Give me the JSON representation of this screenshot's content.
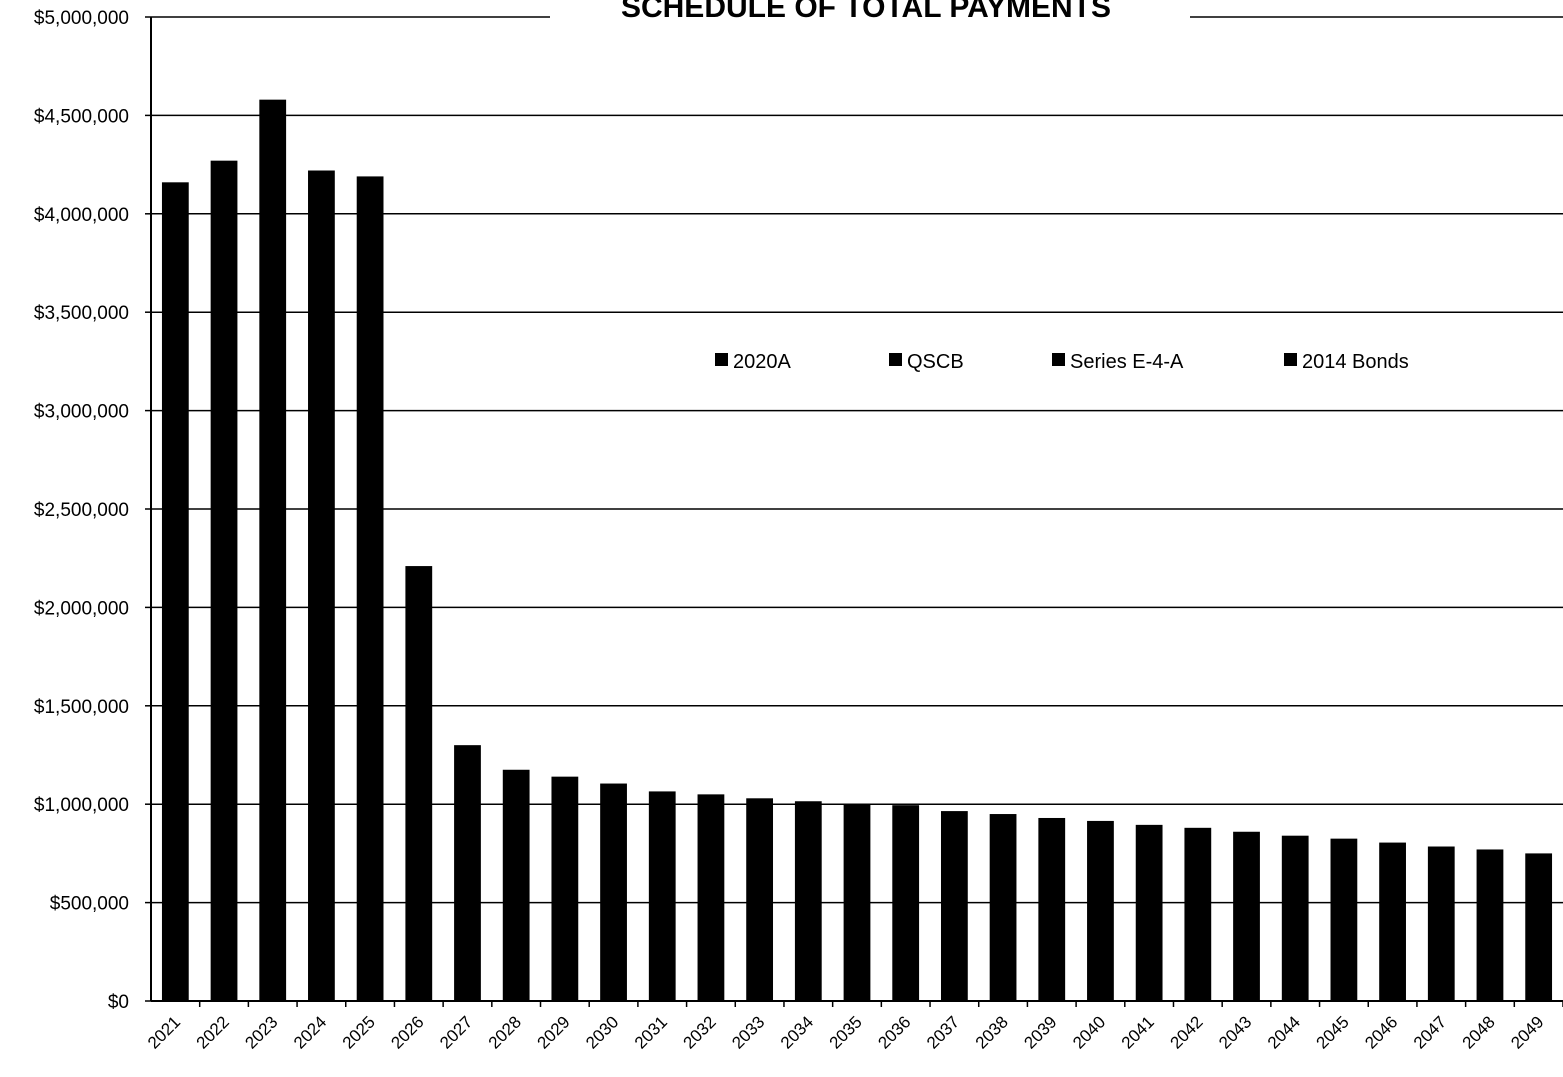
{
  "chart_data": {
    "type": "bar",
    "title": "SCHEDULE OF TOTAL PAYMENTS",
    "xlabel": "",
    "ylabel": "",
    "ylim": [
      0,
      5000000
    ],
    "yticks": [
      "$0",
      "$500,000",
      "$1,000,000",
      "$1,500,000",
      "$2,000,000",
      "$2,500,000",
      "$3,000,000",
      "$3,500,000",
      "$4,000,000",
      "$4,500,000",
      "$5,000,000"
    ],
    "grid": true,
    "legend_position": "center-right",
    "legend": [
      "2020A",
      "QSCB",
      "Series E-4-A",
      "2014 Bonds"
    ],
    "bar_color": "#000000",
    "categories": [
      "2021",
      "2022",
      "2023",
      "2024",
      "2025",
      "2026",
      "2027",
      "2028",
      "2029",
      "2030",
      "2031",
      "2032",
      "2033",
      "2034",
      "2035",
      "2036",
      "2037",
      "2038",
      "2039",
      "2040",
      "2041",
      "2042",
      "2043",
      "2044",
      "2045",
      "2046",
      "2047",
      "2048",
      "2049"
    ],
    "values": [
      4160000,
      4270000,
      4580000,
      4220000,
      4190000,
      2210000,
      1300000,
      1175000,
      1140000,
      1105000,
      1065000,
      1050000,
      1030000,
      1015000,
      1000000,
      995000,
      965000,
      950000,
      930000,
      915000,
      895000,
      880000,
      860000,
      840000,
      825000,
      805000,
      785000,
      770000,
      750000
    ]
  }
}
